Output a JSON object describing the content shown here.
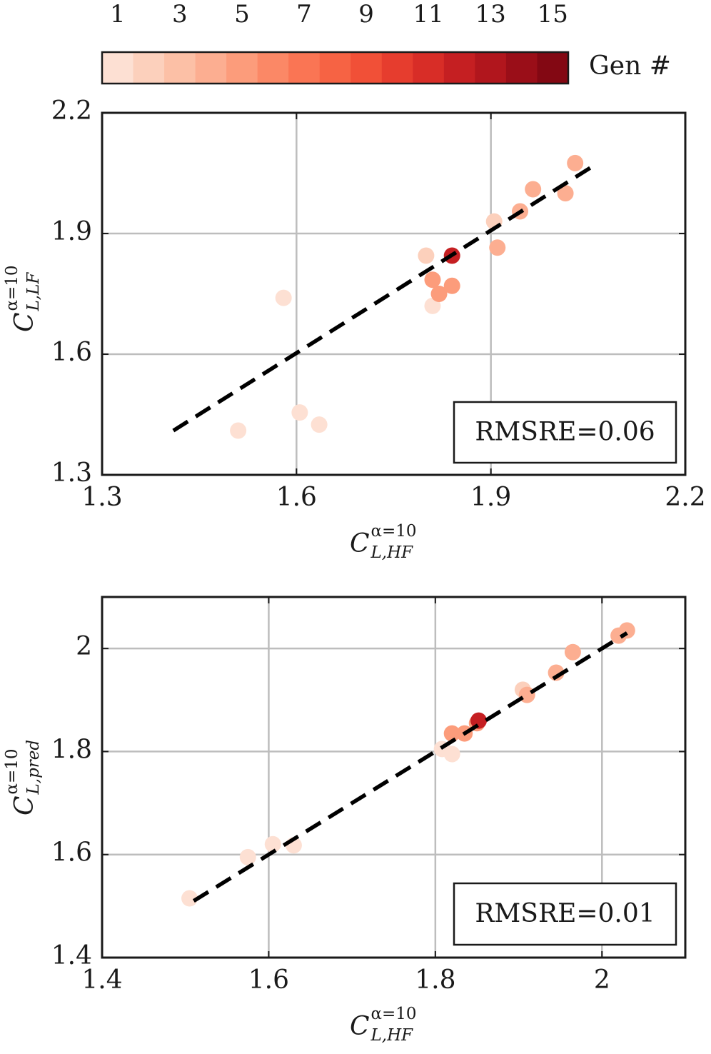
{
  "colorbar": {
    "label": "Gen #",
    "tick_labels": [
      "1",
      "3",
      "5",
      "7",
      "9",
      "11",
      "13",
      "15"
    ],
    "min": 1,
    "max": 15,
    "colors": [
      "#fde0d3",
      "#fcd0bc",
      "#fcc0a6",
      "#fcae91",
      "#fc9c7b",
      "#fb8866",
      "#fa7554",
      "#f66344",
      "#f15037",
      "#e63d2e",
      "#d82d27",
      "#c51f22",
      "#b1161d",
      "#9a0e18",
      "#830813"
    ]
  },
  "chart_data": [
    {
      "type": "scatter",
      "title": "",
      "xlabel": {
        "main": "C",
        "superscript": "α=10",
        "subscript": "L,HF"
      },
      "ylabel": {
        "main": "C",
        "superscript": "α=10",
        "subscript": "L,LF"
      },
      "xlim": [
        1.3,
        2.2
      ],
      "ylim": [
        1.3,
        2.2
      ],
      "xticks": [
        "1.3",
        "1.6",
        "1.9",
        "2.2"
      ],
      "yticks": [
        "1.3",
        "1.6",
        "1.9",
        "2.2"
      ],
      "grid": true,
      "annotation": "RMSRE=0.06",
      "annotation_position": "bottom-right",
      "fit_line": {
        "x": [
          1.41,
          2.06
        ],
        "y": [
          1.41,
          2.07
        ],
        "style": "dashed"
      },
      "points": [
        {
          "x": 1.51,
          "y": 1.41,
          "gen": 1
        },
        {
          "x": 1.605,
          "y": 1.455,
          "gen": 1
        },
        {
          "x": 1.635,
          "y": 1.425,
          "gen": 1
        },
        {
          "x": 1.58,
          "y": 1.74,
          "gen": 1
        },
        {
          "x": 1.8,
          "y": 1.845,
          "gen": 2
        },
        {
          "x": 1.81,
          "y": 1.72,
          "gen": 1
        },
        {
          "x": 1.81,
          "y": 1.785,
          "gen": 5
        },
        {
          "x": 1.82,
          "y": 1.75,
          "gen": 5
        },
        {
          "x": 1.84,
          "y": 1.77,
          "gen": 5
        },
        {
          "x": 1.84,
          "y": 1.845,
          "gen": 12
        },
        {
          "x": 1.905,
          "y": 1.93,
          "gen": 2
        },
        {
          "x": 1.91,
          "y": 1.865,
          "gen": 4
        },
        {
          "x": 1.945,
          "y": 1.955,
          "gen": 4
        },
        {
          "x": 1.965,
          "y": 2.01,
          "gen": 4
        },
        {
          "x": 2.015,
          "y": 2.0,
          "gen": 4
        },
        {
          "x": 2.03,
          "y": 2.075,
          "gen": 4
        }
      ]
    },
    {
      "type": "scatter",
      "title": "",
      "xlabel": {
        "main": "C",
        "superscript": "α=10",
        "subscript": "L,HF"
      },
      "ylabel": {
        "main": "C",
        "superscript": "α=10",
        "subscript": "L,pred"
      },
      "xlim": [
        1.4,
        2.1
      ],
      "ylim": [
        1.4,
        2.1
      ],
      "xticks": [
        "1.4",
        "1.6",
        "1.8",
        "2"
      ],
      "yticks": [
        "1.4",
        "1.6",
        "1.8",
        "2"
      ],
      "grid": true,
      "annotation": "RMSRE=0.01",
      "annotation_position": "bottom-right",
      "fit_line": {
        "x": [
          1.51,
          2.03
        ],
        "y": [
          1.51,
          2.03
        ],
        "style": "dashed"
      },
      "points": [
        {
          "x": 1.505,
          "y": 1.515,
          "gen": 1
        },
        {
          "x": 1.575,
          "y": 1.595,
          "gen": 1
        },
        {
          "x": 1.605,
          "y": 1.62,
          "gen": 1
        },
        {
          "x": 1.63,
          "y": 1.618,
          "gen": 1
        },
        {
          "x": 1.808,
          "y": 1.805,
          "gen": 1
        },
        {
          "x": 1.82,
          "y": 1.795,
          "gen": 1
        },
        {
          "x": 1.82,
          "y": 1.835,
          "gen": 5
        },
        {
          "x": 1.835,
          "y": 1.835,
          "gen": 5
        },
        {
          "x": 1.85,
          "y": 1.855,
          "gen": 5
        },
        {
          "x": 1.852,
          "y": 1.86,
          "gen": 12
        },
        {
          "x": 1.905,
          "y": 1.92,
          "gen": 2
        },
        {
          "x": 1.91,
          "y": 1.91,
          "gen": 4
        },
        {
          "x": 1.945,
          "y": 1.953,
          "gen": 4
        },
        {
          "x": 1.965,
          "y": 1.993,
          "gen": 4
        },
        {
          "x": 2.02,
          "y": 2.025,
          "gen": 4
        },
        {
          "x": 2.03,
          "y": 2.035,
          "gen": 4
        }
      ]
    }
  ]
}
